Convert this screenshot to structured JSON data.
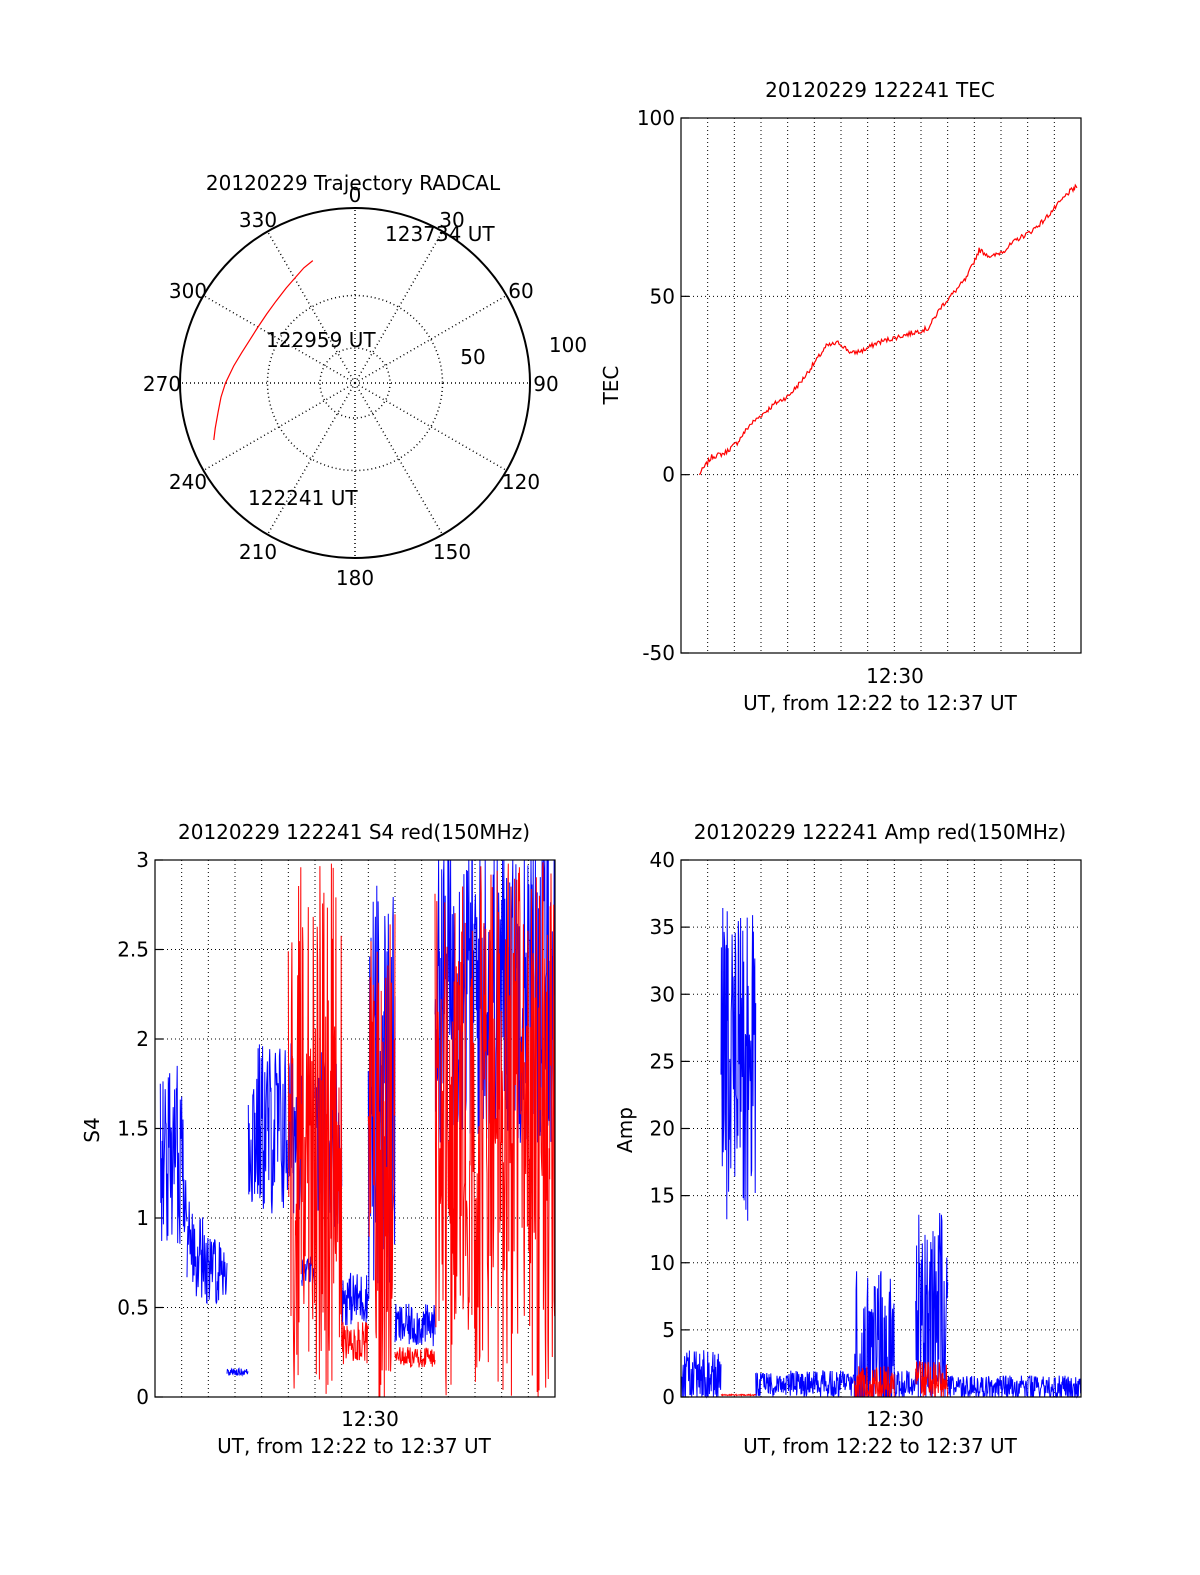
{
  "colors": {
    "red": "#ff0000",
    "blue": "#0000ff",
    "axis": "#000000"
  },
  "chart_data": [
    {
      "id": "polar",
      "type": "scatter",
      "title": "20120229 Trajectory RADCAL",
      "projection": "polar-skyplot",
      "radial_labels": [
        "50",
        "100"
      ],
      "azimuth_labels": [
        "0",
        "30",
        "60",
        "90",
        "120",
        "150",
        "180",
        "210",
        "240",
        "270",
        "300",
        "330"
      ],
      "annotations": [
        "123734 UT",
        "122959 UT",
        "122241 UT"
      ],
      "track": {
        "azimuth_deg": [
          248,
          252,
          258,
          264,
          270,
          278,
          285,
          292,
          300,
          308,
          316,
          324,
          330,
          336,
          341
        ],
        "zenith_deg": [
          87,
          84,
          80,
          77,
          74,
          70,
          67,
          65,
          64,
          64,
          65,
          67,
          69,
          72,
          74
        ]
      }
    },
    {
      "id": "tec",
      "type": "line",
      "title": "20120229 122241 TEC",
      "ylabel": "TEC",
      "xlabel": "UT, from 12:22 to 12:37 UT",
      "xtick_label": "12:30",
      "ylim": [
        -50,
        100
      ],
      "ytick_labels": [
        "-50",
        "0",
        "50",
        "100"
      ],
      "grid": true,
      "series": [
        {
          "color": "red",
          "time_min": [
            0.0,
            0.5,
            1.0,
            1.5,
            2.0,
            2.5,
            3.0,
            3.5,
            4.0,
            4.5,
            5.0,
            5.5,
            6.0,
            6.5,
            7.0,
            7.5,
            8.0,
            8.5,
            9.0,
            9.5,
            10.0,
            10.5,
            11.0,
            11.5,
            12.0,
            12.5,
            13.0,
            13.5,
            14.0,
            14.5,
            14.87
          ],
          "values": [
            0,
            5,
            6,
            9,
            14,
            17,
            20,
            22,
            26,
            31,
            36,
            37,
            34,
            35,
            37,
            38,
            39,
            40,
            41,
            47,
            51,
            55,
            63,
            61,
            63,
            66,
            68,
            71,
            75,
            79,
            81
          ]
        }
      ]
    },
    {
      "id": "s4",
      "type": "line",
      "title": "20120229 122241 S4 red(150MHz)",
      "ylabel": "S4",
      "xlabel": "UT, from 12:22 to 12:37 UT",
      "xtick_label": "12:30",
      "ylim": [
        0,
        3
      ],
      "ytick_labels": [
        "0",
        "0.5",
        "1",
        "1.5",
        "2",
        "2.5",
        "3"
      ],
      "grid": true,
      "series": [
        {
          "color": "blue",
          "segments": [
            {
              "t0": 0.2,
              "t1": 1.2,
              "base": 1.35,
              "amp": 0.5
            },
            {
              "t0": 1.2,
              "t1": 1.8,
              "base": 0.85,
              "amp": 0.3
            },
            {
              "t0": 1.8,
              "t1": 2.7,
              "base": 0.72,
              "amp": 0.2
            },
            {
              "t0": 2.7,
              "t1": 3.5,
              "base": 0.14,
              "amp": 0.02
            },
            {
              "t0": 3.5,
              "t1": 5.5,
              "base": 1.5,
              "amp": 0.5
            },
            {
              "t0": 5.5,
              "t1": 6.0,
              "base": 0.7,
              "amp": 0.08
            },
            {
              "t0": 6.0,
              "t1": 7.0,
              "base": 1.45,
              "amp": 0.5
            },
            {
              "t0": 7.0,
              "t1": 8.0,
              "base": 0.55,
              "amp": 0.15
            },
            {
              "t0": 8.0,
              "t1": 9.0,
              "base": 1.7,
              "amp": 1.2
            },
            {
              "t0": 9.0,
              "t1": 10.5,
              "base": 0.4,
              "amp": 0.12
            },
            {
              "t0": 10.5,
              "t1": 15.0,
              "base": 2.3,
              "amp": 0.9
            }
          ]
        },
        {
          "color": "red",
          "segments": [
            {
              "t0": 5.0,
              "t1": 7.0,
              "base": 1.5,
              "amp": 1.5
            },
            {
              "t0": 7.0,
              "t1": 8.0,
              "base": 0.3,
              "amp": 0.12
            },
            {
              "t0": 8.0,
              "t1": 9.0,
              "base": 1.3,
              "amp": 1.4
            },
            {
              "t0": 9.0,
              "t1": 10.5,
              "base": 0.22,
              "amp": 0.06
            },
            {
              "t0": 10.5,
              "t1": 15.0,
              "base": 1.5,
              "amp": 1.5
            }
          ]
        }
      ]
    },
    {
      "id": "amp",
      "type": "line",
      "title": "20120229 122241 Amp red(150MHz)",
      "ylabel": "Amp",
      "xlabel": "UT, from 12:22 to 12:37 UT",
      "xtick_label": "12:30",
      "ylim": [
        0,
        40
      ],
      "ytick_labels": [
        "0",
        "5",
        "10",
        "15",
        "20",
        "25",
        "30",
        "35",
        "40"
      ],
      "grid": true,
      "series": [
        {
          "color": "blue",
          "segments": [
            {
              "t0": 0.0,
              "t1": 1.5,
              "base": 1.5,
              "amp": 2.0
            },
            {
              "t0": 1.5,
              "t1": 2.8,
              "base": 25,
              "amp": 12
            },
            {
              "t0": 2.8,
              "t1": 6.5,
              "base": 1.0,
              "amp": 1.0
            },
            {
              "t0": 6.5,
              "t1": 8.0,
              "base": 3.5,
              "amp": 6.0
            },
            {
              "t0": 8.0,
              "t1": 8.8,
              "base": 1.0,
              "amp": 1.0
            },
            {
              "t0": 8.8,
              "t1": 10.0,
              "base": 6.0,
              "amp": 8.0
            },
            {
              "t0": 10.0,
              "t1": 15.0,
              "base": 0.7,
              "amp": 0.9
            }
          ]
        },
        {
          "color": "red",
          "segments": [
            {
              "t0": 1.5,
              "t1": 2.8,
              "base": 0.15,
              "amp": 0.05
            },
            {
              "t0": 6.5,
              "t1": 8.0,
              "base": 0.8,
              "amp": 1.5
            },
            {
              "t0": 8.8,
              "t1": 10.0,
              "base": 1.2,
              "amp": 1.5
            }
          ]
        }
      ]
    }
  ]
}
